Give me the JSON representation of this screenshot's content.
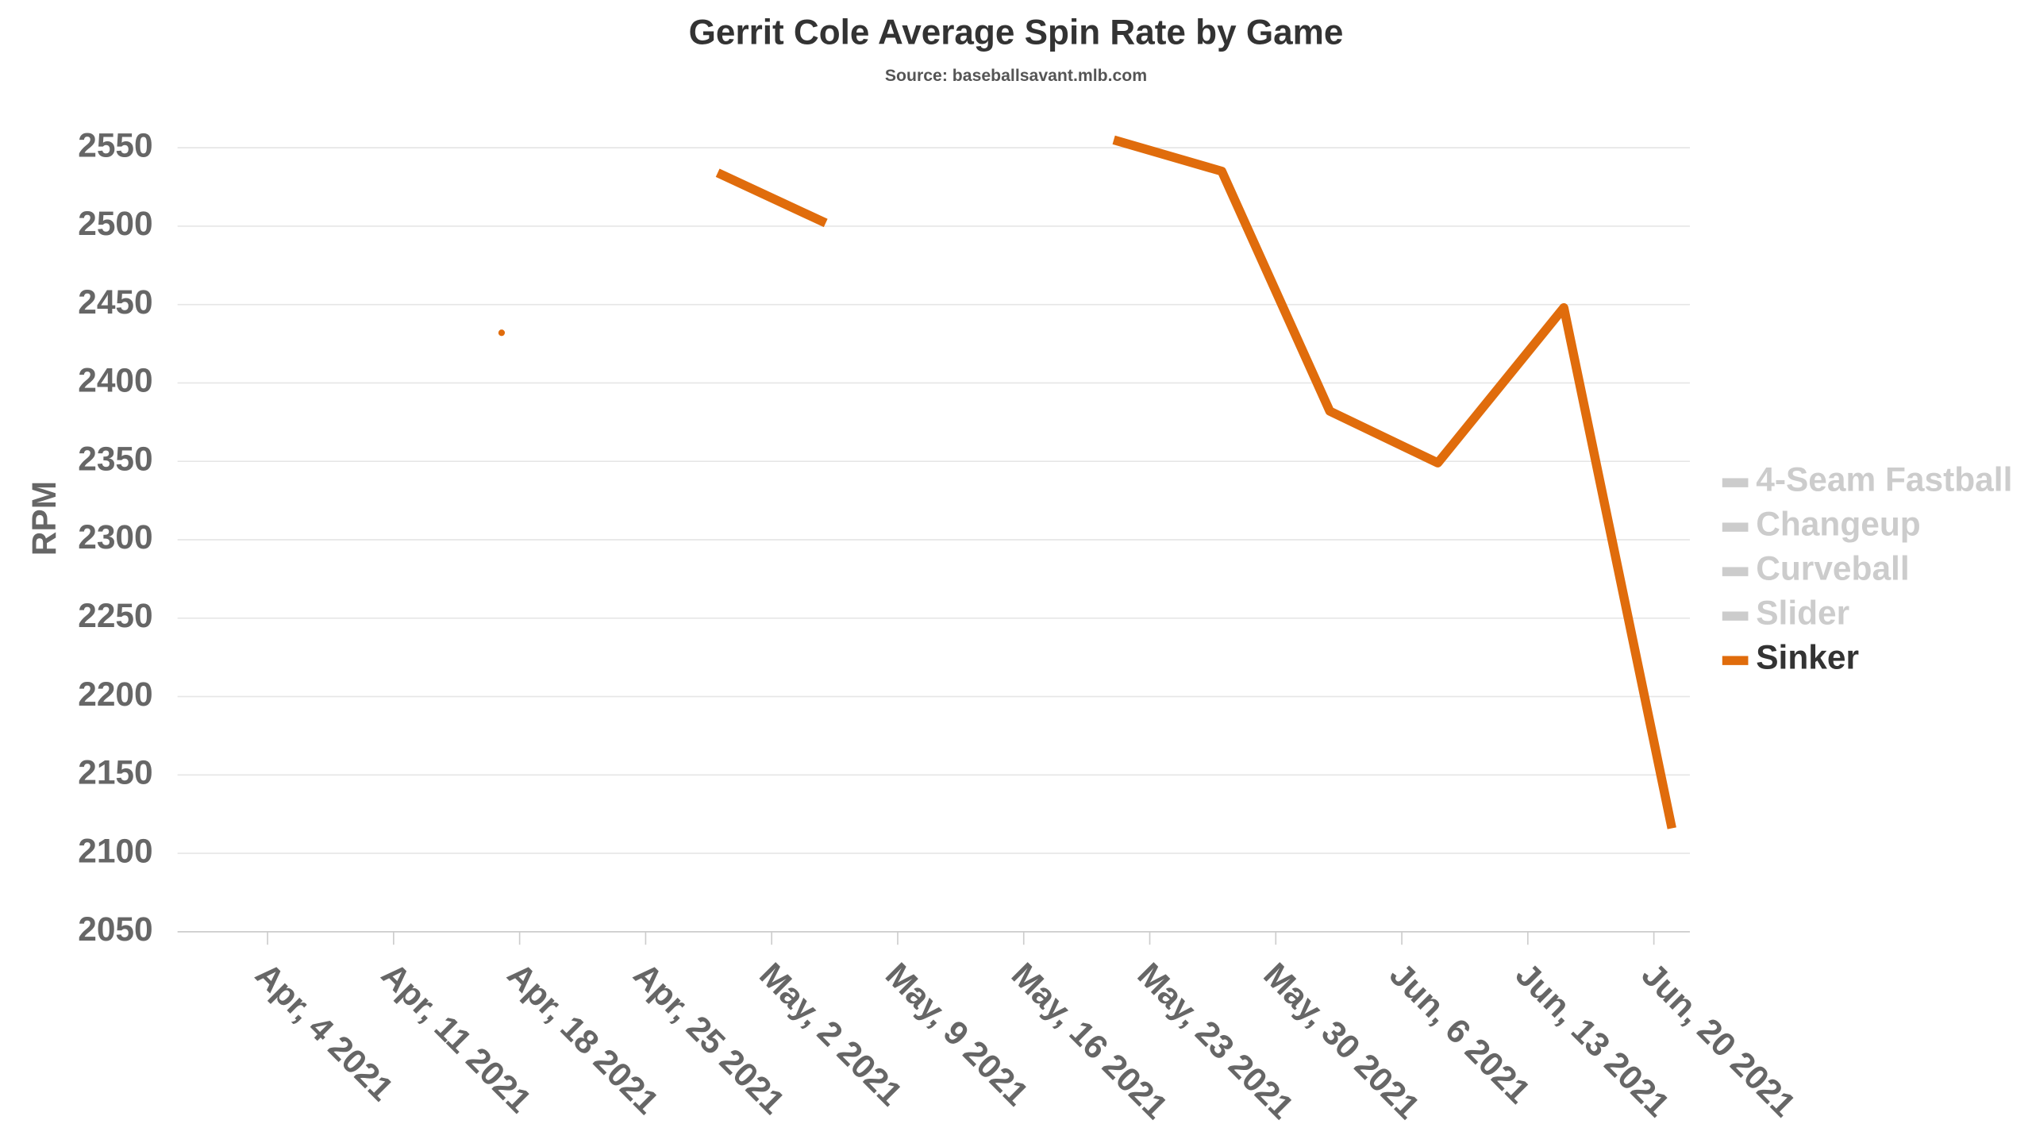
{
  "chart_data": {
    "type": "line",
    "title": "Gerrit Cole Average Spin Rate by Game",
    "subtitle": "Source: baseballsavant.mlb.com",
    "y_label": "RPM",
    "x": [
      "2021-04-17",
      "2021-04-23",
      "2021-04-29",
      "2021-05-05",
      "2021-05-13",
      "2021-05-21",
      "2021-05-27",
      "2021-06-02",
      "2021-06-08",
      "2021-06-15",
      "2021-06-21"
    ],
    "series": [
      {
        "name": "4-Seam Fastball",
        "color": "#cccccc",
        "visible": false,
        "values": [
          null,
          null,
          null,
          null,
          null,
          null,
          null,
          null,
          null,
          null,
          null
        ]
      },
      {
        "name": "Changeup",
        "color": "#cccccc",
        "visible": false,
        "values": [
          null,
          null,
          null,
          null,
          null,
          null,
          null,
          null,
          null,
          null,
          null
        ]
      },
      {
        "name": "Curveball",
        "color": "#cccccc",
        "visible": false,
        "values": [
          null,
          null,
          null,
          null,
          null,
          null,
          null,
          null,
          null,
          null,
          null
        ]
      },
      {
        "name": "Slider",
        "color": "#cccccc",
        "visible": false,
        "values": [
          null,
          null,
          null,
          null,
          null,
          null,
          null,
          null,
          null,
          null,
          null
        ]
      },
      {
        "name": "Sinker",
        "color": "#e06c0c",
        "visible": true,
        "values": [
          2432,
          null,
          2534,
          2502,
          null,
          2555,
          2535,
          2382,
          2349,
          2448,
          2116
        ]
      }
    ],
    "xlim": [
      "2021-03-30",
      "2021-06-22"
    ],
    "xticks": [
      {
        "value": "2021-04-04",
        "label": "Apr, 4 2021"
      },
      {
        "value": "2021-04-11",
        "label": "Apr, 11 2021"
      },
      {
        "value": "2021-04-18",
        "label": "Apr, 18 2021"
      },
      {
        "value": "2021-04-25",
        "label": "Apr, 25 2021"
      },
      {
        "value": "2021-05-02",
        "label": "May, 2 2021"
      },
      {
        "value": "2021-05-09",
        "label": "May, 9 2021"
      },
      {
        "value": "2021-05-16",
        "label": "May, 16 2021"
      },
      {
        "value": "2021-05-23",
        "label": "May, 23 2021"
      },
      {
        "value": "2021-05-30",
        "label": "May, 30 2021"
      },
      {
        "value": "2021-06-06",
        "label": "Jun, 6 2021"
      },
      {
        "value": "2021-06-13",
        "label": "Jun, 13 2021"
      },
      {
        "value": "2021-06-20",
        "label": "Jun, 20 2021"
      }
    ],
    "ylim": [
      2050,
      2550
    ],
    "yticks": [
      2050,
      2100,
      2150,
      2200,
      2250,
      2300,
      2350,
      2400,
      2450,
      2500,
      2550
    ],
    "grid": true,
    "legend": "right"
  }
}
